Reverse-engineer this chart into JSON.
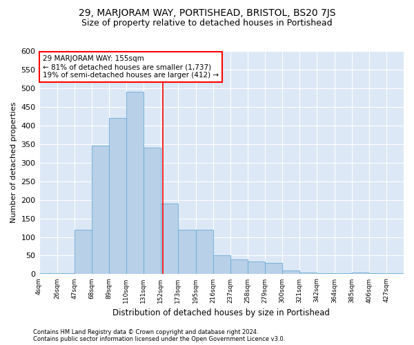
{
  "title": "29, MARJORAM WAY, PORTISHEAD, BRISTOL, BS20 7JS",
  "subtitle": "Size of property relative to detached houses in Portishead",
  "xlabel": "Distribution of detached houses by size in Portishead",
  "ylabel": "Number of detached properties",
  "bar_edges": [
    4,
    26,
    47,
    68,
    89,
    110,
    131,
    152,
    173,
    195,
    216,
    237,
    258,
    279,
    300,
    321,
    342,
    364,
    385,
    406,
    427,
    448
  ],
  "bar_heights": [
    2,
    2,
    120,
    345,
    420,
    490,
    340,
    190,
    120,
    120,
    50,
    40,
    35,
    30,
    10,
    5,
    2,
    2,
    5,
    2,
    2
  ],
  "bar_color": "#b8d0e8",
  "bar_edgecolor": "#6aaad4",
  "property_size": 155,
  "annotation_line1": "29 MARJORAM WAY: 155sqm",
  "annotation_line2": "← 81% of detached houses are smaller (1,737)",
  "annotation_line3": "19% of semi-detached houses are larger (412) →",
  "annotation_box_color": "white",
  "annotation_box_edgecolor": "red",
  "redline_color": "red",
  "ylim": [
    0,
    600
  ],
  "yticks": [
    0,
    50,
    100,
    150,
    200,
    250,
    300,
    350,
    400,
    450,
    500,
    550,
    600
  ],
  "tick_labels": [
    "4sqm",
    "26sqm",
    "47sqm",
    "68sqm",
    "89sqm",
    "110sqm",
    "131sqm",
    "152sqm",
    "173sqm",
    "195sqm",
    "216sqm",
    "237sqm",
    "258sqm",
    "279sqm",
    "300sqm",
    "321sqm",
    "342sqm",
    "364sqm",
    "385sqm",
    "406sqm",
    "427sqm"
  ],
  "footer1": "Contains HM Land Registry data © Crown copyright and database right 2024.",
  "footer2": "Contains public sector information licensed under the Open Government Licence v3.0.",
  "bg_color": "#dce8f5",
  "title_fontsize": 10,
  "subtitle_fontsize": 9,
  "grid_color": "#ffffff"
}
